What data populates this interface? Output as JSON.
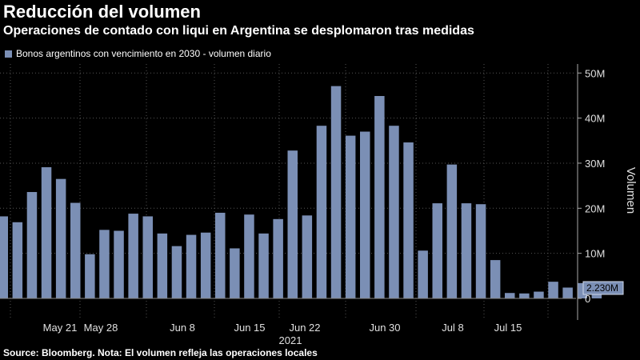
{
  "header": {
    "title": "Reducción del volumen",
    "subtitle": "Operaciones de contado con liqui en Argentina se desplomaron tras medidas"
  },
  "footer": {
    "source": "Source: Bloomberg. Nota: El volumen refleja las operaciones locales"
  },
  "colors": {
    "bar": "#7b8fb5",
    "background": "#000000",
    "grid": "#555555"
  },
  "chart_data": {
    "type": "bar",
    "ylabel": "Volumen",
    "ylim": [
      0,
      52
    ],
    "y_unit": "M",
    "yticks": [
      "0",
      "10M",
      "20M",
      "30M",
      "40M",
      "50M"
    ],
    "grid": true,
    "legend": {
      "position": "top-left",
      "entries": [
        "Bonos argentinos con vencimiento en 2030 - volumen diario"
      ]
    },
    "xticks": [
      "May 21",
      "May 28",
      "Jun 8",
      "Jun 15",
      "Jun 22",
      "Jun 30",
      "Jul 8",
      "Jul 15"
    ],
    "year_label": "2021",
    "last_value_label": "2.230M",
    "series": [
      {
        "name": "Bonos argentinos con vencimiento en 2030 - volumen diario",
        "values": [
          18.2,
          16.9,
          23.6,
          29.1,
          26.5,
          21.2,
          9.8,
          15.2,
          15.0,
          18.8,
          18.2,
          14.4,
          11.6,
          14.1,
          14.6,
          19.0,
          11.1,
          18.6,
          14.4,
          17.6,
          32.8,
          18.4,
          38.3,
          47.1,
          36.1,
          37.0,
          44.9,
          38.3,
          34.6,
          10.6,
          21.1,
          29.7,
          21.1,
          20.9,
          8.5,
          1.2,
          1.1,
          1.5,
          3.7,
          2.4,
          3.4,
          2.23
        ]
      }
    ]
  }
}
